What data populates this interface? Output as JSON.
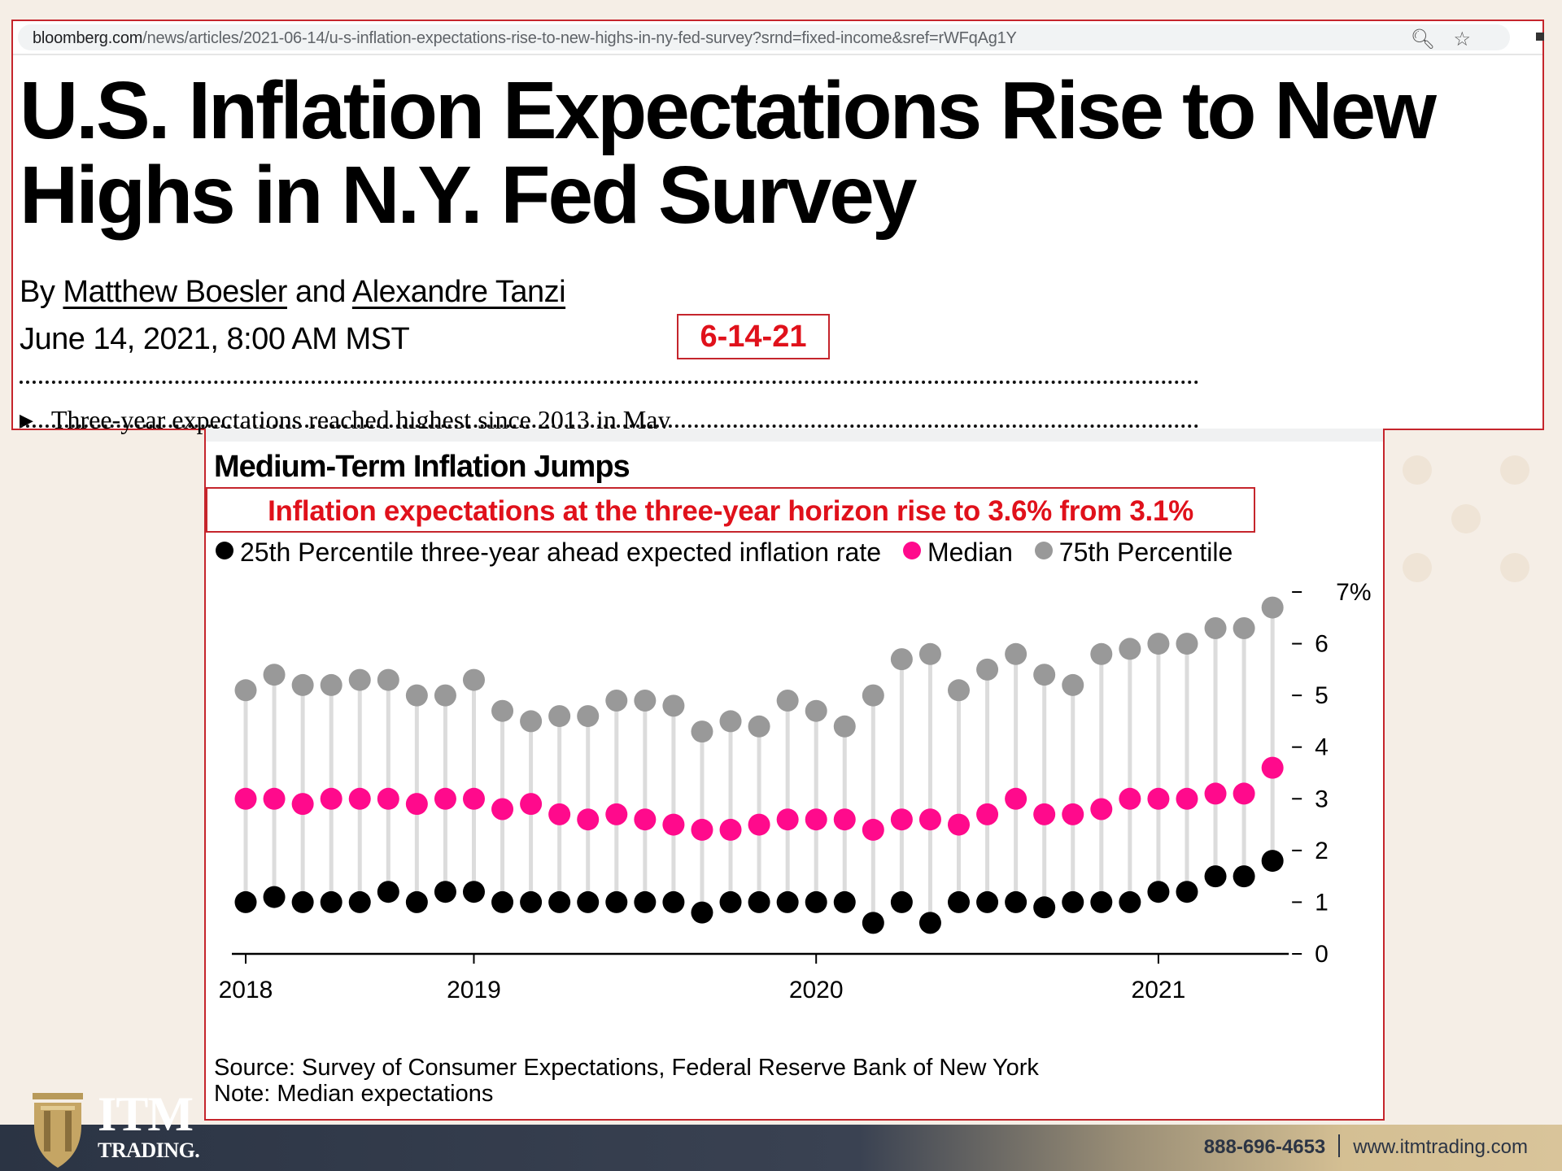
{
  "browser": {
    "url_host": "bloomberg.com",
    "url_path": "/news/articles/2021-06-14/u-s-inflation-expectations-rise-to-new-highs-in-ny-fed-survey?srnd=fixed-income&sref=rWFqAg1Y",
    "icons": [
      "zoom-out-icon",
      "star-icon"
    ]
  },
  "article": {
    "headline": "U.S. Inflation Expectations Rise to New Highs in N.Y. Fed Survey",
    "byline_prefix": "By",
    "author1": "Matthew Boesler",
    "byline_and": "and",
    "author2": "Alexandre Tanzi",
    "dateline": "June 14, 2021, 8:00 AM MST",
    "date_callout": "6-14-21",
    "bullet": "Three-year expectations reached highest since 2013 in May"
  },
  "chart_panel": {
    "callout": "Inflation expectations at the three-year horizon rise to 3.6% from 3.1%",
    "source": "Source: Survey of Consumer Expectations, Federal Reserve Bank of New York",
    "note": "Note: Median expectations"
  },
  "chart_data": {
    "type": "scatter",
    "subtype": "dot-range (lollipop) monthly",
    "title": "Medium-Term Inflation Jumps",
    "xlabel": "",
    "ylabel": "",
    "ylim": [
      0,
      7
    ],
    "yticks": [
      0,
      1,
      2,
      3,
      4,
      5,
      6,
      7
    ],
    "ytick_labels": [
      "0",
      "1",
      "2",
      "3",
      "4",
      "5",
      "6",
      "7%"
    ],
    "y_axis_side": "right",
    "x_count": 37,
    "x_ticks": [
      {
        "index": 0,
        "label": "2018"
      },
      {
        "index": 8,
        "label": "2019"
      },
      {
        "index": 20,
        "label": "2020"
      },
      {
        "index": 32,
        "label": "2021"
      }
    ],
    "grid": false,
    "legend_position": "top",
    "series": [
      {
        "name": "25th Percentile three-year ahead expected inflation rate",
        "color": "#000000",
        "values": [
          1.0,
          1.1,
          1.0,
          1.0,
          1.0,
          1.2,
          1.0,
          1.2,
          1.2,
          1.0,
          1.0,
          1.0,
          1.0,
          1.0,
          1.0,
          1.0,
          0.8,
          1.0,
          1.0,
          1.0,
          1.0,
          1.0,
          0.6,
          1.0,
          0.6,
          1.0,
          1.0,
          1.0,
          0.9,
          1.0,
          1.0,
          1.0,
          1.2,
          1.2,
          1.5,
          1.5,
          1.8
        ]
      },
      {
        "name": "Median",
        "color": "#ff0a8c",
        "values": [
          3.0,
          3.0,
          2.9,
          3.0,
          3.0,
          3.0,
          2.9,
          3.0,
          3.0,
          2.8,
          2.9,
          2.7,
          2.6,
          2.7,
          2.6,
          2.5,
          2.4,
          2.4,
          2.5,
          2.6,
          2.6,
          2.6,
          2.4,
          2.6,
          2.6,
          2.5,
          2.7,
          3.0,
          2.7,
          2.7,
          2.8,
          3.0,
          3.0,
          3.0,
          3.1,
          3.1,
          3.6
        ]
      },
      {
        "name": "75th Percentile",
        "color": "#999999",
        "values": [
          5.1,
          5.4,
          5.2,
          5.2,
          5.3,
          5.3,
          5.0,
          5.0,
          5.3,
          4.7,
          4.5,
          4.6,
          4.6,
          4.9,
          4.9,
          4.8,
          4.3,
          4.5,
          4.4,
          4.9,
          4.7,
          4.4,
          5.0,
          5.7,
          5.8,
          5.1,
          5.5,
          5.8,
          5.4,
          5.2,
          5.8,
          5.9,
          6.0,
          6.0,
          6.3,
          6.3,
          6.7
        ]
      }
    ]
  },
  "footer": {
    "logo_line1": "ITM",
    "logo_line2": "TRADING.",
    "phone": "888-696-4653",
    "website": "www.itmtrading.com"
  }
}
